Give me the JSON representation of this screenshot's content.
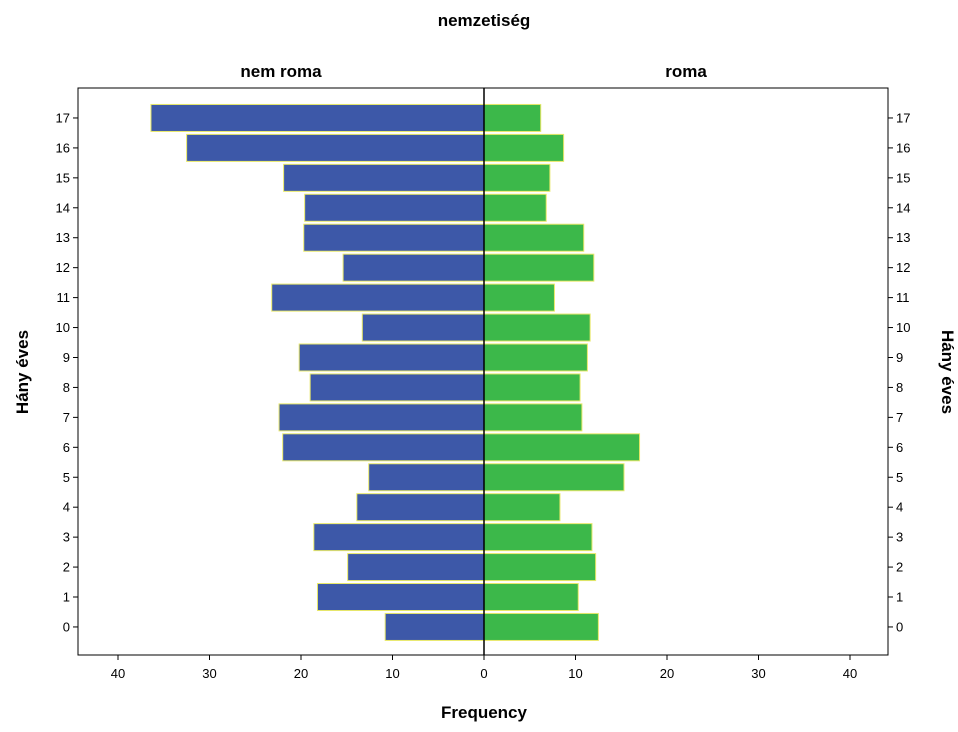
{
  "chart_data": {
    "type": "bar",
    "orientation": "horizontal",
    "title": "nemzetiség",
    "xlabel": "Frequency",
    "ylabel": "Hány éves",
    "categories": [
      "0",
      "1",
      "2",
      "3",
      "4",
      "5",
      "6",
      "7",
      "8",
      "9",
      "10",
      "11",
      "12",
      "13",
      "14",
      "15",
      "16",
      "17"
    ],
    "xlim": [
      0,
      40
    ],
    "xticks": [
      "0",
      "10",
      "20",
      "30",
      "40"
    ],
    "grid": false,
    "series": [
      {
        "name": "nem roma",
        "side": "left",
        "color": "#3d58a8",
        "values": [
          10.8,
          18.2,
          14.9,
          18.6,
          13.9,
          12.6,
          22.0,
          22.4,
          19.0,
          20.2,
          13.3,
          23.2,
          15.4,
          19.7,
          19.6,
          21.9,
          32.5,
          36.4
        ]
      },
      {
        "name": "roma",
        "side": "right",
        "color": "#3cb84a",
        "values": [
          12.5,
          10.3,
          12.2,
          11.8,
          8.3,
          15.3,
          17.0,
          10.7,
          10.5,
          11.3,
          11.6,
          7.7,
          12.0,
          10.9,
          6.8,
          7.2,
          8.7,
          6.2
        ]
      }
    ]
  }
}
